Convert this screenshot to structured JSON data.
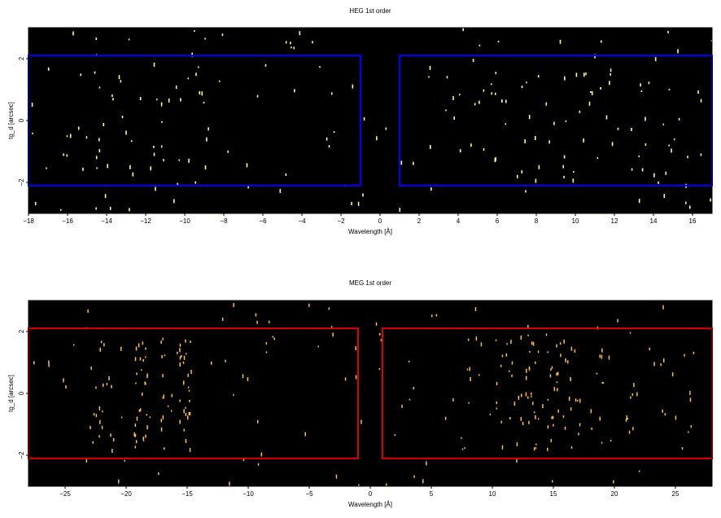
{
  "chart_data": [
    {
      "type": "heatmap",
      "title": "HEG 1st order",
      "xlabel": "Wavelength [Å]",
      "ylabel": "tg_d [arcsec]",
      "xlim": [
        -18,
        17
      ],
      "ylim": [
        -3,
        3
      ],
      "xticks": [
        -18,
        -16,
        -14,
        -12,
        -10,
        -8,
        -6,
        -4,
        -2,
        0,
        2,
        4,
        6,
        8,
        10,
        12,
        14,
        16
      ],
      "yticks": [
        -2,
        0,
        2
      ],
      "background": "#000000",
      "event_color": "#ffff80",
      "regions": [
        {
          "color": "#0000ff",
          "x": [
            -18,
            -1
          ],
          "y": [
            -2.1,
            2.1
          ]
        },
        {
          "color": "#0000ff",
          "x": [
            1,
            17
          ],
          "y": [
            -2.1,
            2.1
          ]
        }
      ]
    },
    {
      "type": "heatmap",
      "title": "MEG 1st order",
      "xlabel": "Wavelength [Å]",
      "ylabel": "tg_d [arcsec]",
      "xlim": [
        -28,
        28
      ],
      "ylim": [
        -3,
        3
      ],
      "xticks": [
        -25,
        -20,
        -15,
        -10,
        -5,
        0,
        5,
        10,
        15,
        20,
        25
      ],
      "yticks": [
        -2,
        0,
        2
      ],
      "background": "#000000",
      "event_color": "#ffc040",
      "regions": [
        {
          "color": "#dd0000",
          "x": [
            -28,
            -1
          ],
          "y": [
            -2.1,
            2.1
          ]
        },
        {
          "color": "#dd0000",
          "x": [
            1,
            28
          ],
          "y": [
            -2.1,
            2.1
          ]
        }
      ]
    }
  ]
}
